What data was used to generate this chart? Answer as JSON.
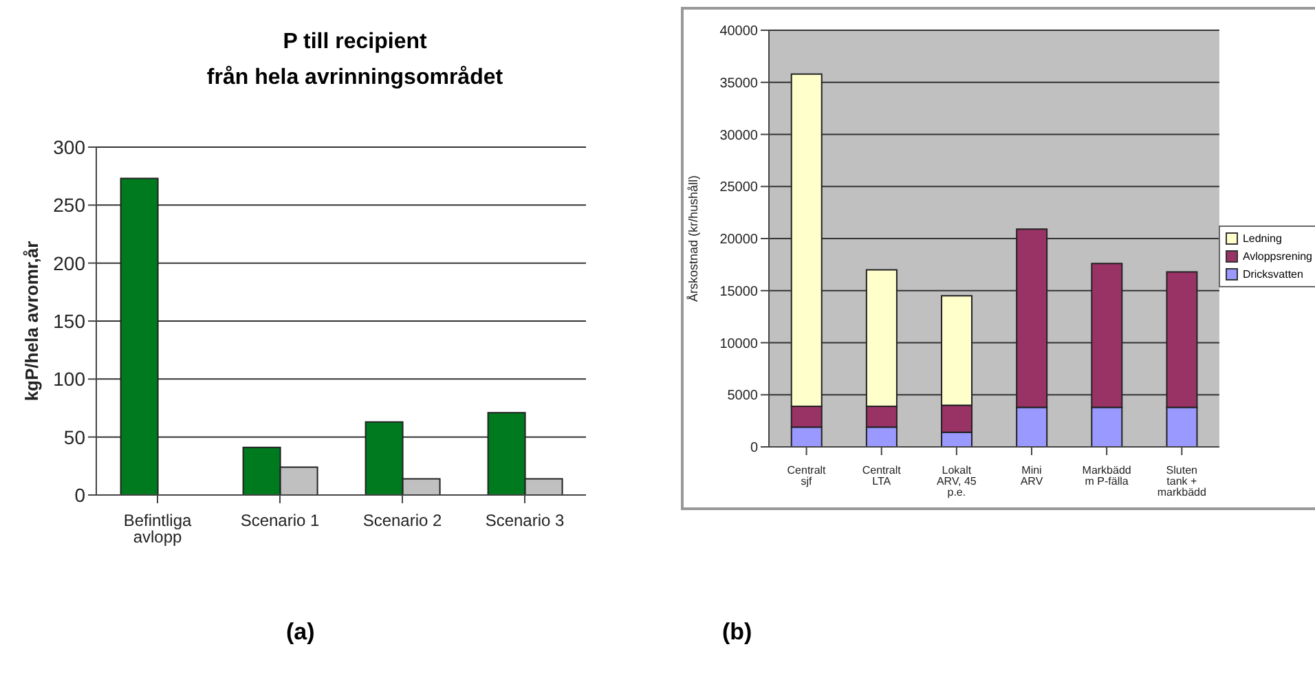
{
  "chart_data": [
    {
      "type": "bar",
      "title": "P till recipient\nfrån hela avrinningsområdet",
      "ylabel": "kgP/hela avromr,år",
      "categories": [
        "Befintliga avlopp",
        "Scenario 1",
        "Scenario 2",
        "Scenario 3"
      ],
      "series": [
        {
          "color": "#007a1e",
          "values": [
            273,
            41,
            63,
            71
          ]
        },
        {
          "color": "#c0c0c0",
          "values": [
            null,
            24,
            14,
            14
          ]
        }
      ],
      "ylim": [
        0,
        300
      ],
      "yticks": [
        0,
        50,
        100,
        150,
        200,
        250,
        300
      ],
      "grid": "y",
      "annotations": [
        "(a)"
      ]
    },
    {
      "type": "bar",
      "stacked": true,
      "ylabel": "Årskostnad (kr/hushåll)",
      "categories": [
        "Centralt sjf",
        "Centralt LTA",
        "Lokalt ARV, 45 p.e.",
        "Mini ARV",
        "Markbädd m P-fälla",
        "Sluten tank + markbädd"
      ],
      "series": [
        {
          "name": "Dricksvatten",
          "color": "#9999ff",
          "values": [
            1900,
            1900,
            1400,
            3800,
            3800,
            3800
          ]
        },
        {
          "name": "Avloppsrening",
          "color": "#993366",
          "values": [
            2000,
            2000,
            2600,
            17100,
            13800,
            13000
          ]
        },
        {
          "name": "Ledning",
          "color": "#ffffcc",
          "values": [
            31900,
            13100,
            10500,
            0,
            0,
            0
          ]
        }
      ],
      "ylim": [
        0,
        40000
      ],
      "yticks": [
        0,
        5000,
        10000,
        15000,
        20000,
        25000,
        30000,
        35000,
        40000
      ],
      "grid": "y",
      "legend": "right",
      "annotations": [
        "(b)"
      ]
    }
  ]
}
